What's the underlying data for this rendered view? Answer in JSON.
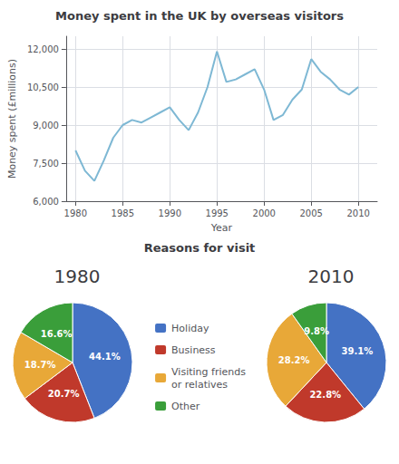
{
  "chart_data": [
    {
      "type": "line",
      "title": "Money spent in the UK by overseas visitors",
      "x_label": "Year",
      "y_label": "Money spent (£millions)",
      "x": [
        1980,
        1981,
        1982,
        1983,
        1984,
        1985,
        1986,
        1987,
        1988,
        1989,
        1990,
        1991,
        1992,
        1993,
        1994,
        1995,
        1996,
        1997,
        1998,
        1999,
        2000,
        2001,
        2002,
        2003,
        2004,
        2005,
        2006,
        2007,
        2008,
        2009,
        2010
      ],
      "values": [
        8000,
        7200,
        6800,
        7600,
        8500,
        9000,
        9200,
        9100,
        9300,
        9500,
        9700,
        9200,
        8800,
        9500,
        10500,
        11900,
        10700,
        10800,
        11000,
        11200,
        10400,
        9200,
        9400,
        10000,
        10400,
        11600,
        11100,
        10800,
        10400,
        10200,
        10500
      ],
      "color": "#7eb8d4",
      "xlim": [
        1979,
        2012
      ],
      "xticks": [
        1980,
        1985,
        1990,
        1995,
        2000,
        2005,
        2010
      ],
      "ylim": [
        6000,
        12500
      ],
      "yticks": [
        {
          "value": 6000,
          "label": "6,000"
        },
        {
          "value": 7500,
          "label": "7,500"
        },
        {
          "value": 9000,
          "label": "9,000"
        },
        {
          "value": 10500,
          "label": "10,500"
        },
        {
          "value": 12000,
          "label": "12,000"
        }
      ],
      "grid": true
    },
    {
      "type": "pie",
      "title": "Reasons for visit",
      "subtitle": "1980",
      "categories": [
        "Holiday",
        "Business",
        "Visiting friends\nor relatives",
        "Other"
      ],
      "colors": [
        "#4472c4",
        "#c0392b",
        "#e8a838",
        "#3a9e3a"
      ],
      "values": [
        44.1,
        20.7,
        18.7,
        16.6
      ],
      "value_labels": [
        "44.1%",
        "20.7%",
        "18.7%",
        "16.6%"
      ],
      "data_labels": true,
      "legend": "center"
    },
    {
      "type": "pie",
      "subtitle": "2010",
      "categories": [
        "Holiday",
        "Business",
        "Visiting friends\nor relatives",
        "Other"
      ],
      "colors": [
        "#4472c4",
        "#c0392b",
        "#e8a838",
        "#3a9e3a"
      ],
      "values": [
        39.1,
        22.8,
        28.2,
        9.8
      ],
      "value_labels": [
        "39.1%",
        "22.8%",
        "28.2%",
        "9.8%"
      ],
      "data_labels": true,
      "legend": "center"
    }
  ]
}
